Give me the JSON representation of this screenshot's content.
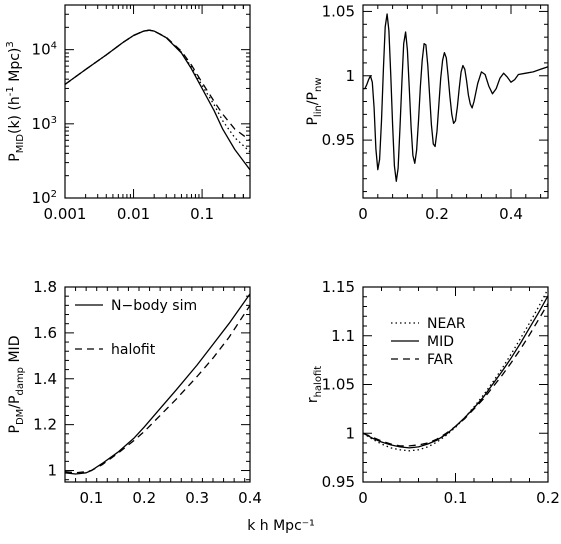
{
  "figure": {
    "shared_xlabel": "k h Mpc⁻¹"
  },
  "chart_data": [
    {
      "id": "p1",
      "type": "line",
      "xscale": "log",
      "yscale": "log",
      "xlim": [
        0.001,
        0.5
      ],
      "ylim": [
        100,
        40000
      ],
      "xticks": [
        0.001,
        0.01,
        0.1
      ],
      "xtick_labels": [
        "0.001",
        "0.01",
        "0.1"
      ],
      "ytick_labels": [
        {
          "v": 100,
          "base": "10",
          "exp": "2"
        },
        {
          "v": 1000,
          "base": "10",
          "exp": "3"
        },
        {
          "v": 10000,
          "base": "10",
          "exp": "4"
        }
      ],
      "ylabel": {
        "main": "P",
        "sub": "MID",
        "rest": "(k) (h",
        "sup1": "-1",
        "rest2": " Mpc)",
        "sup2": "3"
      },
      "series": [
        {
          "style": "solid",
          "x": [
            0.001,
            0.002,
            0.004,
            0.007,
            0.01,
            0.014,
            0.017,
            0.02,
            0.03,
            0.05,
            0.07,
            0.1,
            0.15,
            0.2,
            0.3,
            0.5
          ],
          "y": [
            3400,
            5400,
            8500,
            12500,
            15500,
            17800,
            18300,
            17800,
            14500,
            9000,
            5500,
            3000,
            1500,
            850,
            450,
            240
          ]
        },
        {
          "style": "dashed",
          "x": [
            0.001,
            0.002,
            0.004,
            0.007,
            0.01,
            0.014,
            0.017,
            0.02,
            0.03,
            0.05,
            0.07,
            0.1,
            0.15,
            0.2,
            0.3,
            0.5
          ],
          "y": [
            3400,
            5400,
            8500,
            12500,
            15500,
            17800,
            18300,
            17800,
            14700,
            9500,
            6200,
            3600,
            2000,
            1350,
            850,
            600
          ]
        },
        {
          "style": "dotted",
          "x": [
            0.001,
            0.002,
            0.004,
            0.007,
            0.01,
            0.014,
            0.017,
            0.02,
            0.03,
            0.05,
            0.07,
            0.1,
            0.15,
            0.2,
            0.3,
            0.5
          ],
          "y": [
            3400,
            5400,
            8500,
            12500,
            15500,
            17800,
            18300,
            17800,
            14600,
            9200,
            5800,
            3300,
            1800,
            1100,
            650,
            420
          ]
        }
      ]
    },
    {
      "id": "p2",
      "type": "line",
      "xscale": "linear",
      "yscale": "linear",
      "xlim": [
        0,
        0.5
      ],
      "ylim": [
        0.905,
        1.055
      ],
      "xticks": [
        0,
        0.2,
        0.4
      ],
      "xtick_labels": [
        "0",
        "0.2",
        "0.4"
      ],
      "yticks": [
        0.95,
        1,
        1.05
      ],
      "ytick_labels": [
        "0.95",
        "1",
        "1.05"
      ],
      "ylabel": {
        "main": "P",
        "sub": "lin",
        "rest": "/P",
        "sub2": "nw"
      },
      "series": [
        {
          "style": "solid",
          "x": [
            0,
            0.005,
            0.01,
            0.015,
            0.02,
            0.025,
            0.03,
            0.035,
            0.04,
            0.045,
            0.05,
            0.055,
            0.06,
            0.065,
            0.07,
            0.075,
            0.08,
            0.085,
            0.09,
            0.095,
            0.1,
            0.105,
            0.11,
            0.115,
            0.12,
            0.125,
            0.13,
            0.135,
            0.14,
            0.145,
            0.15,
            0.155,
            0.16,
            0.165,
            0.17,
            0.175,
            0.18,
            0.185,
            0.19,
            0.195,
            0.2,
            0.205,
            0.21,
            0.215,
            0.22,
            0.225,
            0.23,
            0.235,
            0.24,
            0.245,
            0.25,
            0.255,
            0.26,
            0.265,
            0.27,
            0.275,
            0.28,
            0.285,
            0.29,
            0.295,
            0.3,
            0.31,
            0.32,
            0.33,
            0.34,
            0.35,
            0.36,
            0.37,
            0.38,
            0.39,
            0.4,
            0.41,
            0.42,
            0.44,
            0.46,
            0.48,
            0.5
          ],
          "y": [
            0.99,
            0.99,
            0.993,
            0.997,
            1.0,
            0.995,
            0.975,
            0.943,
            0.927,
            0.935,
            0.965,
            1.005,
            1.038,
            1.048,
            1.035,
            1.0,
            0.962,
            0.93,
            0.918,
            0.928,
            0.96,
            0.995,
            1.025,
            1.034,
            1.02,
            0.99,
            0.96,
            0.938,
            0.932,
            0.942,
            0.965,
            0.992,
            1.012,
            1.025,
            1.024,
            1.008,
            0.985,
            0.962,
            0.947,
            0.945,
            0.957,
            0.978,
            0.998,
            1.012,
            1.018,
            1.014,
            1.0,
            0.984,
            0.97,
            0.963,
            0.965,
            0.976,
            0.99,
            1.003,
            1.008,
            1.005,
            0.996,
            0.985,
            0.978,
            0.975,
            0.98,
            0.994,
            1.003,
            1.001,
            0.992,
            0.986,
            0.99,
            0.998,
            1.002,
            0.999,
            0.995,
            0.997,
            1.001,
            1.002,
            1.003,
            1.005,
            1.007
          ]
        }
      ]
    },
    {
      "id": "p3",
      "type": "line",
      "xscale": "linear",
      "yscale": "linear",
      "xlim": [
        0.05,
        0.4
      ],
      "ylim": [
        0.95,
        1.8
      ],
      "xticks": [
        0.1,
        0.2,
        0.3,
        0.4
      ],
      "xtick_labels": [
        "0.1",
        "0.2",
        "0.3",
        "0.4"
      ],
      "yticks": [
        1,
        1.2,
        1.4,
        1.6,
        1.8
      ],
      "ytick_labels": [
        "1",
        "1.2",
        "1.4",
        "1.6",
        "1.8"
      ],
      "ylabel": {
        "main": "P",
        "sub": "DM",
        "rest": "/P",
        "sub2": "damp",
        "rest2": " MID"
      },
      "legend": [
        "N−body sim",
        "halofit"
      ],
      "series": [
        {
          "name": "N−body sim",
          "style": "solid",
          "x": [
            0.05,
            0.07,
            0.09,
            0.1,
            0.12,
            0.15,
            0.18,
            0.2,
            0.23,
            0.26,
            0.3,
            0.33,
            0.36,
            0.4
          ],
          "y": [
            0.99,
            0.985,
            0.99,
            1.0,
            1.03,
            1.08,
            1.14,
            1.19,
            1.27,
            1.35,
            1.46,
            1.55,
            1.64,
            1.77
          ]
        },
        {
          "name": "halofit",
          "style": "dashed",
          "x": [
            0.05,
            0.07,
            0.09,
            0.1,
            0.12,
            0.15,
            0.18,
            0.2,
            0.23,
            0.26,
            0.3,
            0.33,
            0.36,
            0.4
          ],
          "y": [
            0.995,
            0.99,
            0.995,
            1.0,
            1.025,
            1.075,
            1.13,
            1.17,
            1.24,
            1.31,
            1.41,
            1.49,
            1.58,
            1.72
          ]
        }
      ]
    },
    {
      "id": "p4",
      "type": "line",
      "xscale": "linear",
      "yscale": "linear",
      "xlim": [
        0,
        0.2
      ],
      "ylim": [
        0.95,
        1.15
      ],
      "xticks": [
        0,
        0.1,
        0.2
      ],
      "xtick_labels": [
        "0",
        "0.1",
        "0.2"
      ],
      "yticks": [
        0.95,
        1,
        1.05,
        1.1,
        1.15
      ],
      "ytick_labels": [
        "0.95",
        "1",
        "1.05",
        "1.1",
        "1.15"
      ],
      "ylabel": {
        "main": "r",
        "sub": "halofit"
      },
      "legend": [
        "NEAR",
        "MID",
        "FAR"
      ],
      "series": [
        {
          "name": "NEAR",
          "style": "dotted",
          "x": [
            0,
            0.01,
            0.02,
            0.03,
            0.04,
            0.05,
            0.06,
            0.07,
            0.08,
            0.09,
            0.1,
            0.11,
            0.12,
            0.13,
            0.14,
            0.15,
            0.16,
            0.17,
            0.18,
            0.19,
            0.2
          ],
          "y": [
            1.0,
            0.994,
            0.989,
            0.985,
            0.983,
            0.982,
            0.983,
            0.986,
            0.991,
            0.998,
            1.006,
            1.016,
            1.027,
            1.039,
            1.052,
            1.066,
            1.081,
            1.097,
            1.113,
            1.13,
            1.148
          ]
        },
        {
          "name": "MID",
          "style": "solid",
          "x": [
            0,
            0.01,
            0.02,
            0.03,
            0.04,
            0.05,
            0.06,
            0.07,
            0.08,
            0.09,
            0.1,
            0.11,
            0.12,
            0.13,
            0.14,
            0.15,
            0.16,
            0.17,
            0.18,
            0.19,
            0.2
          ],
          "y": [
            1.0,
            0.995,
            0.991,
            0.988,
            0.986,
            0.985,
            0.986,
            0.989,
            0.993,
            0.999,
            1.007,
            1.016,
            1.026,
            1.037,
            1.05,
            1.063,
            1.077,
            1.092,
            1.108,
            1.124,
            1.141
          ]
        },
        {
          "name": "FAR",
          "style": "dashed",
          "x": [
            0,
            0.01,
            0.02,
            0.03,
            0.04,
            0.05,
            0.06,
            0.07,
            0.08,
            0.09,
            0.1,
            0.11,
            0.12,
            0.13,
            0.14,
            0.15,
            0.16,
            0.17,
            0.18,
            0.19,
            0.2
          ],
          "y": [
            1.0,
            0.996,
            0.992,
            0.989,
            0.987,
            0.987,
            0.988,
            0.99,
            0.994,
            1.0,
            1.007,
            1.015,
            1.025,
            1.035,
            1.047,
            1.059,
            1.072,
            1.086,
            1.101,
            1.117,
            1.133
          ]
        }
      ]
    }
  ]
}
